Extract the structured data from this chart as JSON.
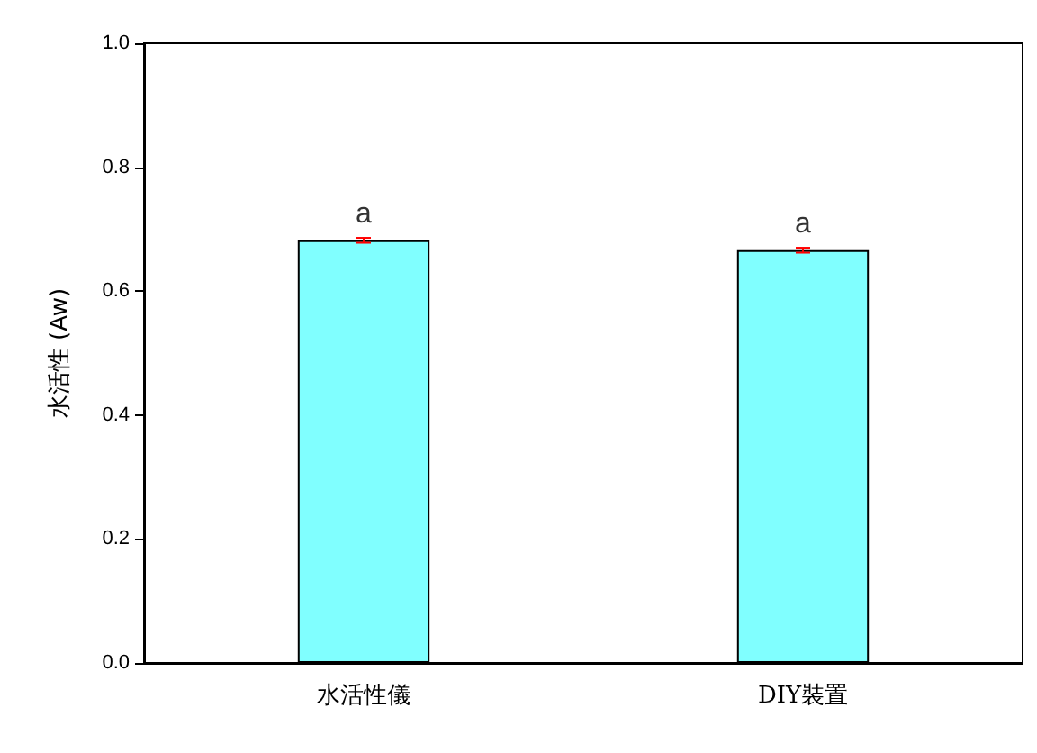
{
  "chart_data": {
    "type": "bar",
    "ylabel": "水活性 (Aw)",
    "categories": [
      "水活性儀",
      "DIY裝置"
    ],
    "values": [
      0.682,
      0.666
    ],
    "color": "#80ffff",
    "errors": [
      0.004,
      0.004
    ],
    "ylim": [
      0,
      1
    ],
    "yticks": [
      {
        "value": 0,
        "label": "0.0"
      },
      0.2,
      0.4,
      0.6,
      0.8,
      {
        "value": 1,
        "label": "1.0"
      }
    ],
    "grid": false,
    "annotations": [
      {
        "text": "a",
        "x": "水活性儀",
        "y": 0.686
      },
      {
        "text": "a",
        "x": "DIY裝置",
        "y": 0.67
      }
    ]
  }
}
